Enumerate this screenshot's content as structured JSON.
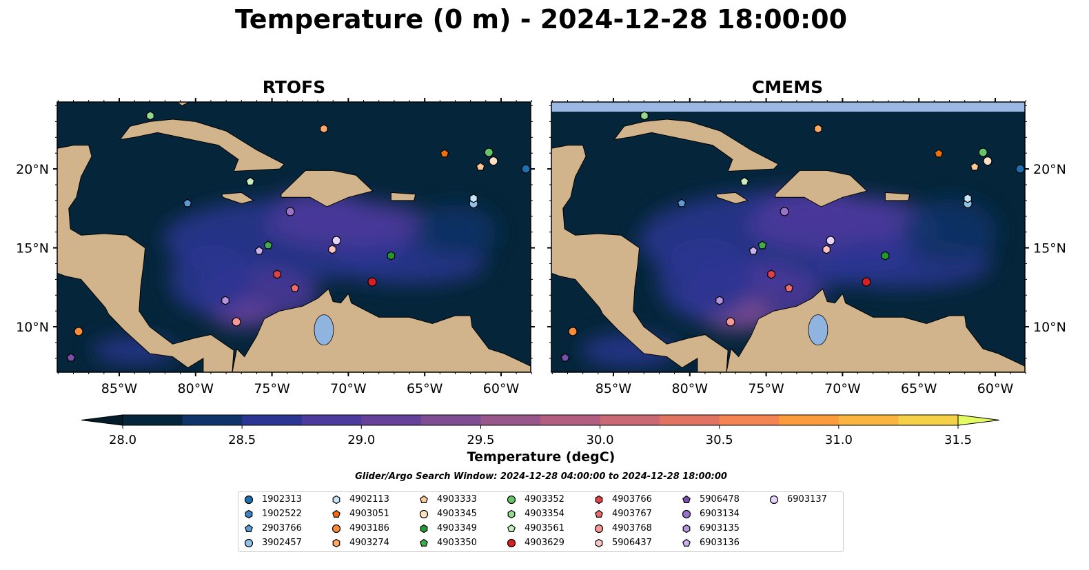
{
  "title": "Temperature (0 m) - 2024-12-28 18:00:00",
  "panels": [
    {
      "title": "RTOFS"
    },
    {
      "title": "CMEMS"
    }
  ],
  "axes": {
    "lon_ticks": [
      -85,
      -80,
      -75,
      -70,
      -65,
      -60
    ],
    "lon_labels": [
      "85°W",
      "80°W",
      "75°W",
      "70°W",
      "65°W",
      "60°W"
    ],
    "lat_ticks": [
      10,
      15,
      20
    ],
    "lat_labels": [
      "10°N",
      "15°N",
      "20°N"
    ],
    "lon_range": [
      -89.06,
      -58.06
    ],
    "lat_range": [
      7.12,
      24.24
    ]
  },
  "colorbar": {
    "label": "Temperature (degC)",
    "min": 28.0,
    "max": 31.5,
    "step": 0.25,
    "tick_labels": [
      "28.0",
      "28.5",
      "29.0",
      "29.5",
      "30.0",
      "30.5",
      "31.0",
      "31.5"
    ],
    "colors": [
      "#05263a",
      "#10346a",
      "#2c3592",
      "#4c3a9c",
      "#66419a",
      "#7f4d91",
      "#97578a",
      "#b25e80",
      "#c96974",
      "#e17363",
      "#f48451",
      "#fb9d3f",
      "#f9b53f",
      "#f5d14a"
    ],
    "under": "#041b2a",
    "over": "#e6fa64"
  },
  "search_window": "Glider/Argo Search Window: 2024-12-28 04:00:00 to 2024-12-28 18:00:00",
  "floats": [
    {
      "id": "1902313",
      "shape": "circle",
      "color": "#1f6fb0",
      "lon": -58.37,
      "lat": 20.0
    },
    {
      "id": "1902522",
      "shape": "hexagon",
      "color": "#3b84c0"
    },
    {
      "id": "2903766",
      "shape": "pentagon",
      "color": "#5a9bd5",
      "lon": -80.53,
      "lat": 17.82
    },
    {
      "id": "3902457",
      "shape": "circle",
      "color": "#8fc1e8",
      "lon": -61.8,
      "lat": 17.8
    },
    {
      "id": "4902113",
      "shape": "hexagon",
      "color": "#c9e4f7",
      "lon": -61.8,
      "lat": 18.13
    },
    {
      "id": "4903051",
      "shape": "pentagon",
      "color": "#f07010",
      "lon": -63.7,
      "lat": 20.97
    },
    {
      "id": "4903186",
      "shape": "circle",
      "color": "#fb8c3a",
      "lon": -87.66,
      "lat": 9.7
    },
    {
      "id": "4903274",
      "shape": "hexagon",
      "color": "#fda865",
      "lon": -71.6,
      "lat": 22.54
    },
    {
      "id": "4903333",
      "shape": "pentagon",
      "color": "#fdc898",
      "lon": -61.35,
      "lat": 20.13
    },
    {
      "id": "4903345",
      "shape": "circle",
      "color": "#fde0c4",
      "lon": -60.5,
      "lat": 20.5
    },
    {
      "id": "4903349",
      "shape": "hexagon",
      "color": "#1e9a2e",
      "lon": -67.2,
      "lat": 14.5
    },
    {
      "id": "4903350",
      "shape": "pentagon",
      "color": "#3fae48",
      "lon": -75.25,
      "lat": 15.16
    },
    {
      "id": "4903352",
      "shape": "circle",
      "color": "#66c46a",
      "lon": -60.8,
      "lat": 21.05
    },
    {
      "id": "4903354",
      "shape": "hexagon",
      "color": "#95d890",
      "lon": -82.97,
      "lat": 23.37
    },
    {
      "id": "4903561",
      "shape": "pentagon",
      "color": "#c9efc0",
      "lon": -76.42,
      "lat": 19.2
    },
    {
      "id": "4903629",
      "shape": "circle",
      "color": "#d62024",
      "lon": -68.44,
      "lat": 12.84
    },
    {
      "id": "4903766",
      "shape": "hexagon",
      "color": "#e04048",
      "lon": -74.66,
      "lat": 13.32
    },
    {
      "id": "4903767",
      "shape": "pentagon",
      "color": "#ec6c6c",
      "lon": -73.5,
      "lat": 12.45
    },
    {
      "id": "4903768",
      "shape": "circle",
      "color": "#f49898",
      "lon": -77.33,
      "lat": 10.31
    },
    {
      "id": "5906437",
      "shape": "hexagon",
      "color": "#fbc4c4",
      "lon": -71.05,
      "lat": 14.9
    },
    {
      "id": "5906478",
      "shape": "pentagon",
      "color": "#7b4fae",
      "lon": -88.16,
      "lat": 8.04
    },
    {
      "id": "6903134",
      "shape": "circle",
      "color": "#9a72c8",
      "lon": -73.8,
      "lat": 17.3
    },
    {
      "id": "6903135",
      "shape": "hexagon",
      "color": "#b595dc",
      "lon": -78.05,
      "lat": 11.66
    },
    {
      "id": "6903136",
      "shape": "pentagon",
      "color": "#cdb0ee",
      "lon": -75.84,
      "lat": 14.81
    },
    {
      "id": "6903137",
      "shape": "circle",
      "color": "#e6d4fa",
      "lon": -70.78,
      "lat": 15.46
    }
  ]
}
